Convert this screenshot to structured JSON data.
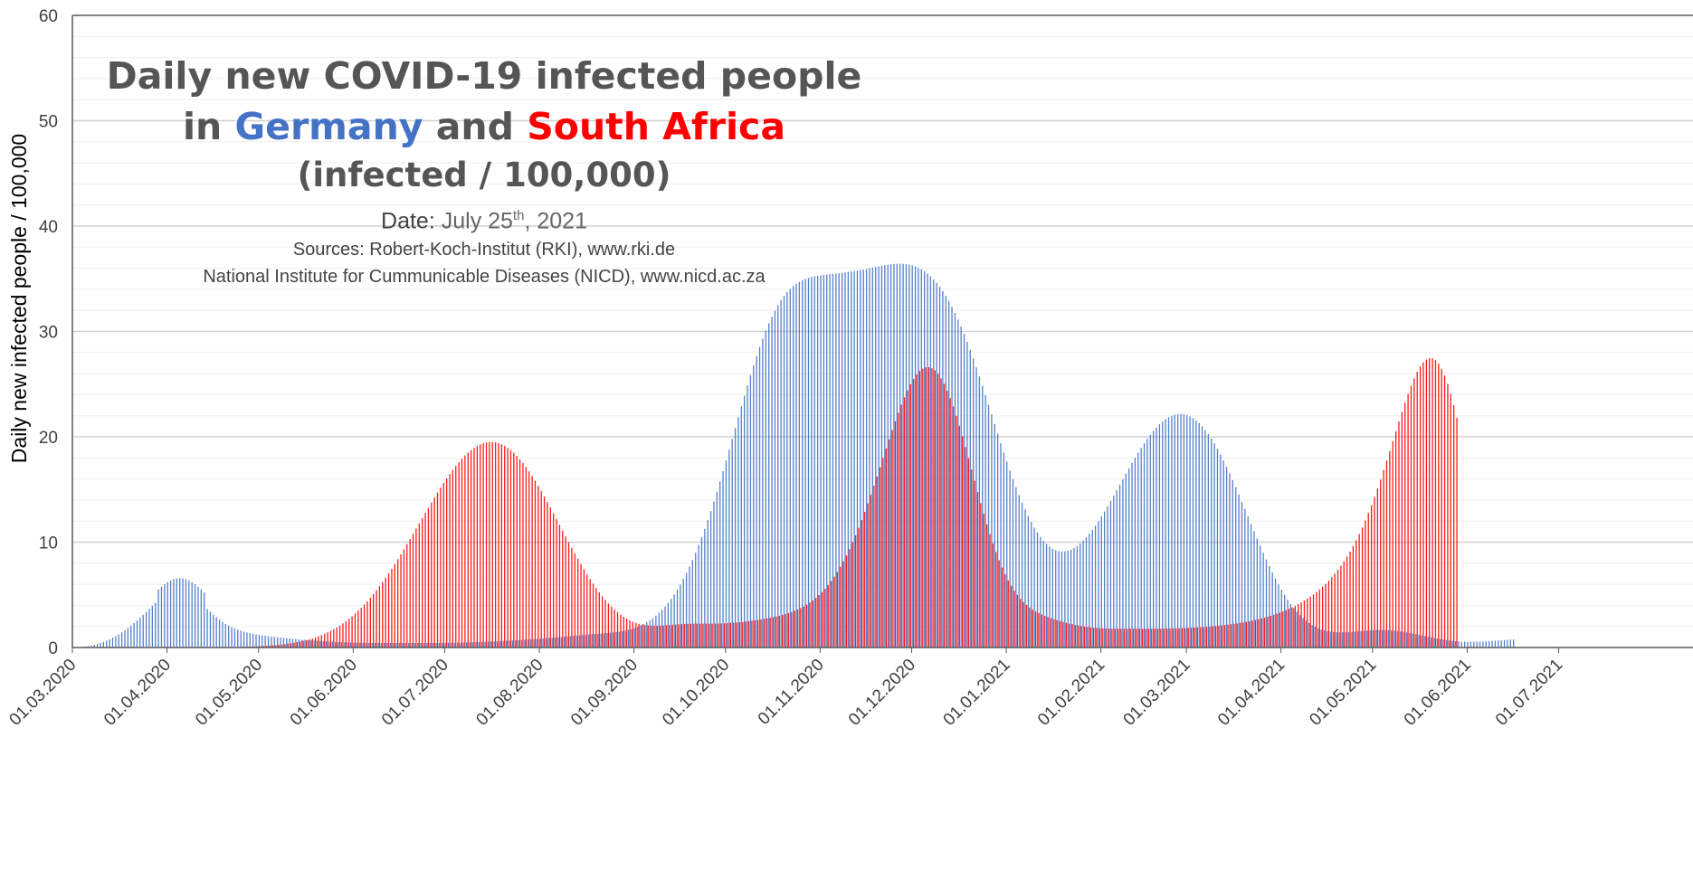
{
  "title": {
    "line1": "Daily new COVID-19 infected people",
    "in": "in",
    "country1": "Germany",
    "and": "and",
    "country2": "South Africa",
    "line3": "(infected / 100,000)",
    "date_label": "Date:",
    "date_value": "July 25",
    "date_sup": "th",
    "date_year": ", 2021",
    "source1": "Sources: Robert-Koch-Institut (RKI), www.rki.de",
    "source2": "National Institute for Cummunicable Diseases (NICD), www.nicd.ac.za"
  },
  "colors": {
    "germany": "#4472C4",
    "south_africa": "#FF0000",
    "title": "#555555",
    "grid": "#d9d9d9"
  },
  "chart_data": {
    "type": "bar",
    "ylabel": "Daily new infected people / 100,000",
    "xlabel": "",
    "ylim": [
      0,
      60
    ],
    "yticks": [
      "0",
      "10",
      "20",
      "30",
      "40",
      "50",
      "60"
    ],
    "x_ticks": [
      "01.03.2020",
      "01.04.2020",
      "01.05.2020",
      "01.06.2020",
      "01.07.2020",
      "01.08.2020",
      "01.09.2020",
      "01.10.2020",
      "01.11.2020",
      "01.12.2020",
      "01.01.2021",
      "01.02.2021",
      "01.03.2021",
      "01.04.2021",
      "01.05.2021",
      "01.06.2021",
      "01.07.2021"
    ],
    "grid": true,
    "legend": "title",
    "series": [
      {
        "name": "Germany",
        "color": "#4472C4",
        "start_date": "01.03.2020",
        "values": [
          0.0,
          0.01,
          0.02,
          0.05,
          0.09,
          0.14,
          0.2,
          0.27,
          0.35,
          0.44,
          0.54,
          0.66,
          0.78,
          0.93,
          1.08,
          1.25,
          1.44,
          1.64,
          1.85,
          2.08,
          2.32,
          2.57,
          2.83,
          3.1,
          3.38,
          3.67,
          3.96,
          4.25,
          5.51,
          5.77,
          6.01,
          6.21,
          6.37,
          6.49,
          6.56,
          6.59,
          6.56,
          6.49,
          6.37,
          6.21,
          6.01,
          5.77,
          5.51,
          5.22,
          3.65,
          3.38,
          3.12,
          2.87,
          2.64,
          2.43,
          2.24,
          2.08,
          1.94,
          1.81,
          1.7,
          1.6,
          1.51,
          1.43,
          1.37,
          1.31,
          1.25,
          1.2,
          1.16,
          1.12,
          1.08,
          1.04,
          1.01,
          0.98,
          0.95,
          0.92,
          0.89,
          0.86,
          0.83,
          0.81,
          0.78,
          0.75,
          0.73,
          0.7,
          0.68,
          0.66,
          0.64,
          0.62,
          0.6,
          0.58,
          0.56,
          0.55,
          0.53,
          0.52,
          0.51,
          0.5,
          0.49,
          0.48,
          0.47,
          0.46,
          0.46,
          0.45,
          0.45,
          0.44,
          0.44,
          0.44,
          0.44,
          0.43,
          0.43,
          0.43,
          0.43,
          0.43,
          0.43,
          0.43,
          0.43,
          0.43,
          0.43,
          0.43,
          0.43,
          0.43,
          0.43,
          0.43,
          0.43,
          0.43,
          0.44,
          0.44,
          0.44,
          0.44,
          0.45,
          0.45,
          0.46,
          0.46,
          0.47,
          0.47,
          0.48,
          0.49,
          0.5,
          0.5,
          0.51,
          0.52,
          0.53,
          0.54,
          0.56,
          0.57,
          0.58,
          0.59,
          0.61,
          0.62,
          0.64,
          0.65,
          0.67,
          0.69,
          0.7,
          0.72,
          0.74,
          0.76,
          0.78,
          0.8,
          0.82,
          0.84,
          0.86,
          0.89,
          0.91,
          0.93,
          0.96,
          0.98,
          1.01,
          1.03,
          1.06,
          1.08,
          1.11,
          1.13,
          1.16,
          1.18,
          1.21,
          1.23,
          1.26,
          1.28,
          1.3,
          1.33,
          1.35,
          1.37,
          1.4,
          1.43,
          1.46,
          1.5,
          1.55,
          1.61,
          1.68,
          1.76,
          1.85,
          1.96,
          2.09,
          2.23,
          2.4,
          2.58,
          2.79,
          3.02,
          3.28,
          3.57,
          3.89,
          4.24,
          4.62,
          5.04,
          5.49,
          5.98,
          6.51,
          7.07,
          7.68,
          8.31,
          8.99,
          9.71,
          10.47,
          11.26,
          12.09,
          12.96,
          13.86,
          14.79,
          15.76,
          16.74,
          17.75,
          18.77,
          19.8,
          20.84,
          21.87,
          22.89,
          23.9,
          24.89,
          25.85,
          26.78,
          27.67,
          28.52,
          29.32,
          30.07,
          30.76,
          31.4,
          31.98,
          32.5,
          32.97,
          33.38,
          33.74,
          34.05,
          34.31,
          34.53,
          34.71,
          34.86,
          34.98,
          35.08,
          35.16,
          35.23,
          35.28,
          35.33,
          35.37,
          35.4,
          35.44,
          35.47,
          35.5,
          35.53,
          35.56,
          35.6,
          35.64,
          35.68,
          35.73,
          35.78,
          35.83,
          35.88,
          35.94,
          36.0,
          36.06,
          36.12,
          36.18,
          36.24,
          36.29,
          36.34,
          36.38,
          36.41,
          36.43,
          36.43,
          36.42,
          36.39,
          36.34,
          36.27,
          36.17,
          36.04,
          35.89,
          35.7,
          35.48,
          35.23,
          34.94,
          34.61,
          34.24,
          33.83,
          33.38,
          32.88,
          32.34,
          31.76,
          31.14,
          30.47,
          29.77,
          29.02,
          28.25,
          27.44,
          26.6,
          25.74,
          24.85,
          23.95,
          23.04,
          22.13,
          21.21,
          20.3,
          19.4,
          18.51,
          17.65,
          16.81,
          15.99,
          15.21,
          14.47,
          13.76,
          13.1,
          12.48,
          11.91,
          11.39,
          10.92,
          10.51,
          10.14,
          9.84,
          9.58,
          9.38,
          9.24,
          9.15,
          9.11,
          9.12,
          9.18,
          9.28,
          9.44,
          9.63,
          9.87,
          10.14,
          10.45,
          10.79,
          11.17,
          11.57,
          12.0,
          12.45,
          12.92,
          13.41,
          13.91,
          14.42,
          14.94,
          15.46,
          15.98,
          16.5,
          17.01,
          17.52,
          18.01,
          18.49,
          18.95,
          19.39,
          19.81,
          20.2,
          20.56,
          20.89,
          21.19,
          21.45,
          21.68,
          21.86,
          22.0,
          22.1,
          22.16,
          22.17,
          22.14,
          22.06,
          21.94,
          21.77,
          21.56,
          21.3,
          20.99,
          20.65,
          20.26,
          19.83,
          19.36,
          18.86,
          18.32,
          17.75,
          17.15,
          16.53,
          15.89,
          15.22,
          14.54,
          13.85,
          13.15,
          12.45,
          11.74,
          11.04,
          10.35,
          9.67,
          9.01,
          8.36,
          7.73,
          7.13,
          6.55,
          6.0,
          5.48,
          5.0,
          4.54,
          4.12,
          3.74,
          3.39,
          3.07,
          2.79,
          2.54,
          2.32,
          2.13,
          1.97,
          1.83,
          1.72,
          1.63,
          1.56,
          1.51,
          1.47,
          1.45,
          1.44,
          1.44,
          1.45,
          1.46,
          1.48,
          1.5,
          1.53,
          1.55,
          1.58,
          1.6,
          1.62,
          1.64,
          1.65,
          1.66,
          1.66,
          1.66,
          1.65,
          1.63,
          1.6,
          1.57,
          1.53,
          1.49,
          1.44,
          1.38,
          1.33,
          1.27,
          1.21,
          1.15,
          1.08,
          1.02,
          0.96,
          0.91,
          0.85,
          0.8,
          0.75,
          0.71,
          0.67,
          0.63,
          0.6,
          0.58,
          0.56,
          0.55,
          0.54,
          0.54,
          0.54,
          0.55,
          0.56,
          0.57,
          0.59,
          0.61,
          0.63,
          0.65,
          0.67,
          0.69,
          0.71,
          0.73,
          0.75,
          0.77
        ]
      },
      {
        "name": "South Africa",
        "color": "#FF0000",
        "start_date": "01.03.2020",
        "values": [
          0.0,
          0.0,
          0.0,
          0.0,
          0.0,
          0.0,
          0.0,
          0.0,
          0.0,
          0.0,
          0.0,
          0.0,
          0.0,
          0.0,
          0.0,
          0.0,
          0.0,
          0.0,
          0.0,
          0.0,
          0.0,
          0.0,
          0.0,
          0.0,
          0.0,
          0.0,
          0.0,
          0.0,
          0.0,
          0.0,
          0.01,
          0.01,
          0.01,
          0.01,
          0.01,
          0.01,
          0.01,
          0.01,
          0.01,
          0.01,
          0.01,
          0.01,
          0.01,
          0.02,
          0.02,
          0.02,
          0.02,
          0.02,
          0.03,
          0.03,
          0.03,
          0.04,
          0.04,
          0.05,
          0.05,
          0.06,
          0.07,
          0.08,
          0.09,
          0.1,
          0.11,
          0.13,
          0.14,
          0.16,
          0.18,
          0.21,
          0.23,
          0.26,
          0.29,
          0.33,
          0.37,
          0.41,
          0.46,
          0.51,
          0.57,
          0.64,
          0.71,
          0.79,
          0.87,
          0.97,
          1.07,
          1.18,
          1.31,
          1.44,
          1.58,
          1.74,
          1.91,
          2.09,
          2.29,
          2.5,
          2.72,
          2.96,
          3.22,
          3.49,
          3.77,
          4.07,
          4.39,
          4.73,
          5.08,
          5.44,
          5.82,
          6.22,
          6.62,
          7.05,
          7.48,
          7.93,
          8.39,
          8.85,
          9.33,
          9.81,
          10.3,
          10.79,
          11.29,
          11.79,
          12.28,
          12.78,
          13.27,
          13.76,
          14.24,
          14.71,
          15.17,
          15.62,
          16.05,
          16.47,
          16.86,
          17.24,
          17.59,
          17.92,
          18.22,
          18.5,
          18.74,
          18.96,
          19.14,
          19.28,
          19.39,
          19.47,
          19.51,
          19.51,
          19.47,
          19.4,
          19.29,
          19.14,
          18.95,
          18.73,
          18.48,
          18.19,
          17.86,
          17.51,
          17.13,
          16.72,
          16.28,
          15.83,
          15.35,
          14.86,
          14.35,
          13.82,
          13.29,
          12.75,
          12.2,
          11.65,
          11.1,
          10.55,
          10.01,
          9.47,
          8.94,
          8.42,
          7.92,
          7.43,
          6.96,
          6.5,
          6.06,
          5.64,
          5.25,
          4.87,
          4.52,
          4.19,
          3.89,
          3.61,
          3.35,
          3.12,
          2.92,
          2.74,
          2.58,
          2.45,
          2.34,
          2.25,
          2.18,
          2.13,
          2.1,
          2.08,
          2.07,
          2.07,
          2.08,
          2.1,
          2.12,
          2.14,
          2.16,
          2.18,
          2.2,
          2.22,
          2.24,
          2.25,
          2.26,
          2.27,
          2.27,
          2.27,
          2.27,
          2.27,
          2.27,
          2.27,
          2.27,
          2.28,
          2.29,
          2.3,
          2.31,
          2.33,
          2.35,
          2.37,
          2.4,
          2.43,
          2.46,
          2.5,
          2.54,
          2.58,
          2.62,
          2.67,
          2.72,
          2.77,
          2.83,
          2.89,
          2.95,
          3.02,
          3.1,
          3.18,
          3.27,
          3.37,
          3.49,
          3.61,
          3.75,
          3.9,
          4.07,
          4.26,
          4.47,
          4.71,
          4.97,
          5.26,
          5.58,
          5.93,
          6.31,
          6.72,
          7.17,
          7.66,
          8.18,
          8.74,
          9.34,
          9.98,
          10.65,
          11.36,
          12.1,
          12.88,
          13.68,
          14.51,
          15.36,
          16.23,
          17.11,
          18.0,
          18.89,
          19.77,
          20.63,
          21.47,
          22.28,
          23.04,
          23.75,
          24.41,
          24.99,
          25.5,
          25.92,
          26.25,
          26.48,
          26.6,
          26.61,
          26.51,
          26.3,
          25.98,
          25.55,
          25.02,
          24.39,
          23.67,
          22.87,
          21.99,
          21.05,
          20.06,
          19.03,
          17.97,
          16.89,
          15.82,
          14.75,
          13.7,
          12.68,
          11.7,
          10.77,
          9.89,
          9.06,
          8.29,
          7.59,
          6.95,
          6.37,
          5.85,
          5.39,
          4.99,
          4.63,
          4.32,
          4.05,
          3.81,
          3.61,
          3.43,
          3.27,
          3.13,
          3.01,
          2.89,
          2.79,
          2.69,
          2.6,
          2.51,
          2.43,
          2.35,
          2.28,
          2.21,
          2.15,
          2.09,
          2.04,
          1.99,
          1.95,
          1.91,
          1.88,
          1.86,
          1.84,
          1.82,
          1.81,
          1.8,
          1.79,
          1.79,
          1.79,
          1.79,
          1.79,
          1.79,
          1.79,
          1.79,
          1.79,
          1.79,
          1.79,
          1.79,
          1.79,
          1.79,
          1.79,
          1.79,
          1.79,
          1.8,
          1.8,
          1.81,
          1.81,
          1.82,
          1.83,
          1.84,
          1.85,
          1.86,
          1.88,
          1.89,
          1.91,
          1.93,
          1.95,
          1.97,
          1.99,
          2.02,
          2.04,
          2.07,
          2.1,
          2.14,
          2.17,
          2.21,
          2.25,
          2.29,
          2.34,
          2.39,
          2.44,
          2.5,
          2.56,
          2.62,
          2.69,
          2.76,
          2.84,
          2.92,
          3.01,
          3.11,
          3.21,
          3.31,
          3.43,
          3.55,
          3.68,
          3.81,
          3.96,
          4.11,
          4.28,
          4.45,
          4.64,
          4.84,
          5.05,
          5.28,
          5.52,
          5.78,
          6.05,
          6.35,
          6.67,
          7.01,
          7.37,
          7.76,
          8.18,
          8.63,
          9.11,
          9.63,
          10.18,
          10.77,
          11.4,
          12.06,
          12.77,
          13.51,
          14.29,
          15.11,
          15.96,
          16.84,
          17.74,
          18.66,
          19.59,
          20.53,
          21.45,
          22.36,
          23.24,
          24.07,
          24.85,
          25.55,
          26.17,
          26.68,
          27.08,
          27.34,
          27.47,
          27.45,
          27.28,
          26.95,
          26.46,
          25.82,
          25.02,
          24.08,
          23.0,
          21.8
        ]
      }
    ]
  }
}
